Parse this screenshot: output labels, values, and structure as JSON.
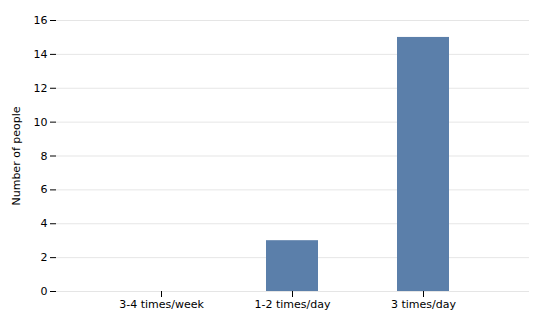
{
  "chart_data": {
    "type": "bar",
    "categories": [
      "3-4 times/week",
      "1-2 times/day",
      "3 times/day"
    ],
    "values": [
      0,
      3,
      15
    ],
    "color": "#5b7faa",
    "ylabel": "Number of people",
    "ylim": [
      0,
      16
    ],
    "yticks": [
      0,
      2,
      4,
      6,
      8,
      10,
      12,
      14,
      16
    ],
    "grid": true
  }
}
